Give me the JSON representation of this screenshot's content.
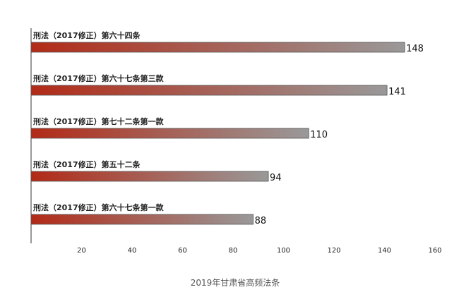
{
  "chart_data": {
    "type": "bar",
    "orientation": "horizontal",
    "categories": [
      "刑法（2017修正）第六十四条",
      "刑法（2017修正）第六十七条第三款",
      "刑法（2017修正）第七十二条第一款",
      "刑法（2017修正）第五十二条",
      "刑法（2017修正）第六十七条第一款"
    ],
    "values": [
      148,
      141,
      110,
      94,
      88
    ],
    "title": "",
    "xlabel": "2019年甘肃省高频法条",
    "ylabel": "",
    "xlim": [
      0,
      160
    ],
    "xticks": [
      20,
      40,
      60,
      80,
      100,
      120,
      140,
      160
    ],
    "grid": false,
    "legend": "none",
    "bar_gradient": [
      "#b22a17",
      "#999999"
    ]
  }
}
